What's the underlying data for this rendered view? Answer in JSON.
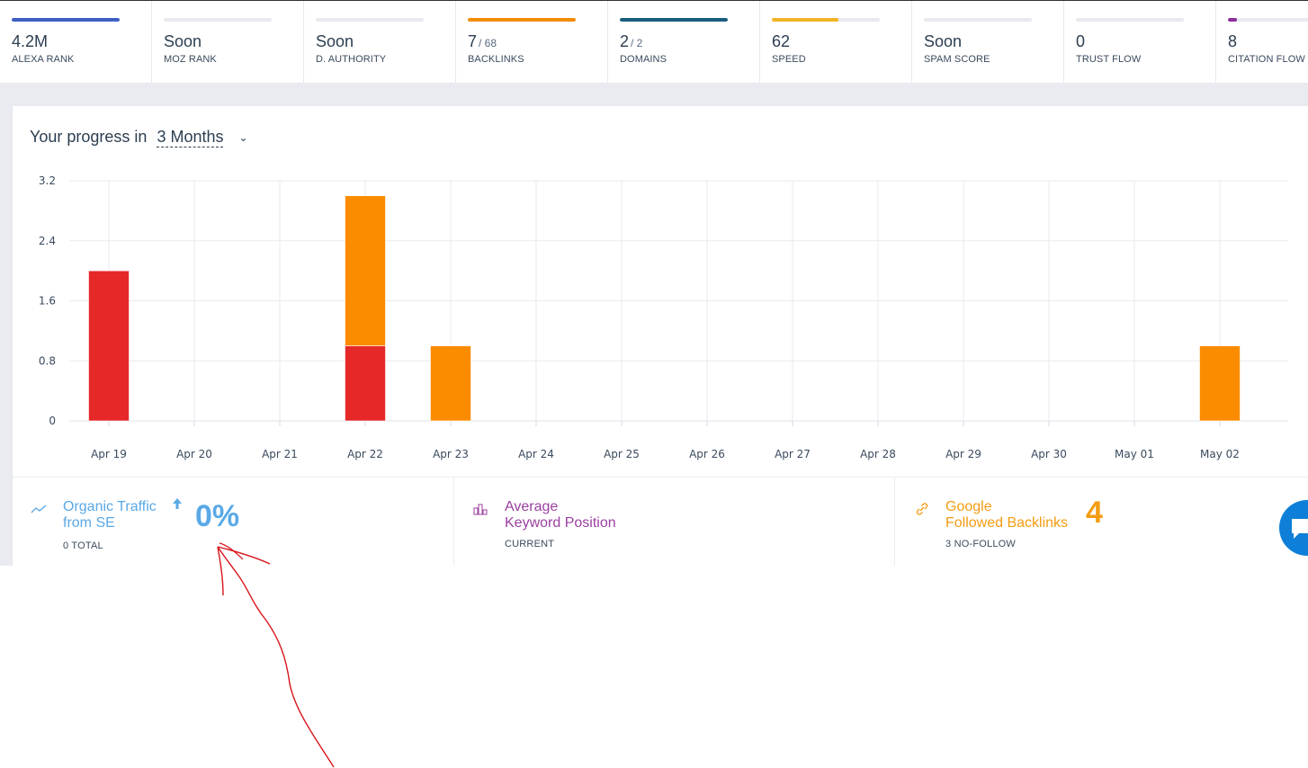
{
  "metrics": [
    {
      "value": "4.2M",
      "sub": "",
      "label": "ALEXA RANK",
      "color": "#3d5fc4",
      "fill": 1.0
    },
    {
      "value": "Soon",
      "sub": "",
      "label": "MOZ RANK",
      "color": "#e8eaef",
      "fill": 0.0
    },
    {
      "value": "Soon",
      "sub": "",
      "label": "D. AUTHORITY",
      "color": "#e8eaef",
      "fill": 0.0
    },
    {
      "value": "7",
      "sub": "/ 68",
      "label": "BACKLINKS",
      "color": "#f28c00",
      "fill": 1.0
    },
    {
      "value": "2",
      "sub": "/ 2",
      "label": "DOMAINS",
      "color": "#1a5d7e",
      "fill": 1.0
    },
    {
      "value": "62",
      "sub": "",
      "label": "SPEED",
      "color": "#f0b323",
      "fill": 0.62
    },
    {
      "value": "Soon",
      "sub": "",
      "label": "SPAM SCORE",
      "color": "#e8eaef",
      "fill": 0.0
    },
    {
      "value": "0",
      "sub": "",
      "label": "TRUST FLOW",
      "color": "#e8eaef",
      "fill": 0.0
    },
    {
      "value": "8",
      "sub": "",
      "label": "CITATION FLOW",
      "color": "#8e2f9b",
      "fill": 0.08
    }
  ],
  "progress": {
    "title": "Your progress in",
    "period": "3 Months"
  },
  "chart_data": {
    "type": "bar",
    "stacked": true,
    "categories": [
      "Apr 19",
      "Apr 20",
      "Apr 21",
      "Apr 22",
      "Apr 23",
      "Apr 24",
      "Apr 25",
      "Apr 26",
      "Apr 27",
      "Apr 28",
      "Apr 29",
      "Apr 30",
      "May 01",
      "May 02"
    ],
    "series": [
      {
        "color": "#e62829",
        "values": [
          2,
          0,
          0,
          1,
          0,
          0,
          0,
          0,
          0,
          0,
          0,
          0,
          0,
          0
        ]
      },
      {
        "color": "#fb8c00",
        "values": [
          0,
          0,
          0,
          2,
          1,
          0,
          0,
          0,
          0,
          0,
          0,
          0,
          0,
          1
        ]
      }
    ],
    "yticks": [
      "0",
      "0.8",
      "1.6",
      "2.4",
      "3.2"
    ],
    "ylim": [
      0,
      3.2
    ],
    "grid": true
  },
  "stats": [
    {
      "title_line1": "Organic Traffic",
      "title_line2": "from SE",
      "big": "0%",
      "foot": "0 TOTAL",
      "color": "#5aa9e6",
      "icon": "trending-icon",
      "trend": "arrow-up-icon"
    },
    {
      "title_line1": "Average",
      "title_line2": "Keyword Position",
      "big": "",
      "foot": "CURRENT",
      "color": "#9b3fa0",
      "icon": "bar-chart-icon"
    },
    {
      "title_line1": "Google",
      "title_line2": "Followed Backlinks",
      "big": "4",
      "foot": "3 NO-FOLLOW",
      "color": "#f39c12",
      "icon": "link-icon"
    }
  ]
}
